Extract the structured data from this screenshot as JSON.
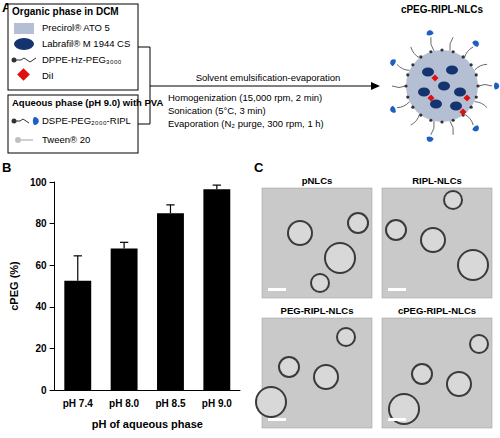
{
  "panel_labels": [
    "A",
    "B",
    "C"
  ],
  "panel_a": {
    "organic_phase": {
      "title": "Organic phase in DCM",
      "components": [
        "Precirol® ATO 5",
        "Labrafil® M 1944 CS",
        "DPPE-Hz-PEG₃₀₀₀",
        "DiI"
      ]
    },
    "aqueous_phase": {
      "title": "Aqueous phase (pH 9.0) with PVA",
      "components": [
        "DSPE-PEG₂₀₀₀-RIPL",
        "Tween® 20"
      ]
    },
    "process": {
      "title": "Solvent emulsification-evaporation",
      "steps": [
        "Homogenization (15,000 rpm, 2 min)",
        "Sonication (5°C, 3 min)",
        "Evaporation (N₂ purge, 300 rpm, 1 h)"
      ]
    },
    "product": "cPEG-RIPL-NLCs"
  },
  "chart_data": {
    "type": "bar",
    "categories": [
      "pH 7.4",
      "pH 8.0",
      "pH 8.5",
      "pH 9.0"
    ],
    "values": [
      52.5,
      68,
      85,
      96.5
    ],
    "errors": [
      12,
      3,
      4,
      2
    ],
    "color": "#000000",
    "xlabel": "pH of aqueous phase",
    "ylabel": "cPEG (%)",
    "ylim": [
      0,
      100
    ],
    "yticks": [
      0,
      20,
      40,
      60,
      80,
      100
    ],
    "grid": false
  },
  "panel_c": {
    "images": [
      "pNLCs",
      "RIPL-NLCs",
      "PEG-RIPL-NLCs",
      "cPEG-RIPL-NLCs"
    ]
  }
}
